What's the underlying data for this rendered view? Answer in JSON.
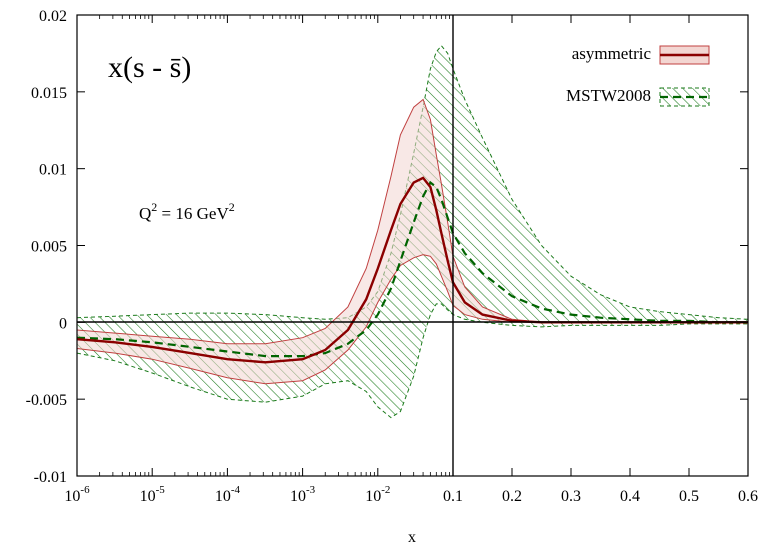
{
  "chart_data": {
    "type": "area",
    "title": "x(s - s̄)",
    "annotation": {
      "base": "Q",
      "exp1": "2",
      "mid": " = 16 GeV",
      "exp2": "2"
    },
    "xlabel": "x",
    "ylabel": "",
    "x_axis": {
      "log_segment": {
        "range": [
          1e-06,
          0.1
        ],
        "scale": "log"
      },
      "linear_segment": {
        "range": [
          0.1,
          0.6
        ],
        "scale": "linear"
      },
      "tick_labels": [
        {
          "base": "10",
          "exp": "-6",
          "x": 1e-06
        },
        {
          "base": "10",
          "exp": "-5",
          "x": 1e-05
        },
        {
          "base": "10",
          "exp": "-4",
          "x": 0.0001
        },
        {
          "base": "10",
          "exp": "-3",
          "x": 0.001
        },
        {
          "base": "10",
          "exp": "-2",
          "x": 0.01
        },
        {
          "text": "0.1",
          "x": 0.1
        },
        {
          "text": "0.2",
          "x": 0.2
        },
        {
          "text": "0.3",
          "x": 0.3
        },
        {
          "text": "0.4",
          "x": 0.4
        },
        {
          "text": "0.5",
          "x": 0.5
        },
        {
          "text": "0.6",
          "x": 0.6
        }
      ]
    },
    "ylim": [
      -0.01,
      0.02
    ],
    "y_ticks": [
      {
        "text": "-0.01",
        "value": -0.01
      },
      {
        "text": "-0.005",
        "value": -0.005
      },
      {
        "text": "0",
        "value": 0
      },
      {
        "text": "0.005",
        "value": 0.005
      },
      {
        "text": "0.01",
        "value": 0.01
      },
      {
        "text": "0.015",
        "value": 0.015
      },
      {
        "text": "0.02",
        "value": 0.02
      }
    ],
    "grid": false,
    "legend_position": "top-right",
    "series": [
      {
        "name": "asymmetric",
        "style": "solid band with central line",
        "line_color": "#8b0000",
        "band_fill": "#f3d6d2",
        "band_edge": "#c04040",
        "x": [
          1e-06,
          3.2e-06,
          1e-05,
          3.2e-05,
          0.0001,
          0.00032,
          0.001,
          0.002,
          0.004,
          0.007,
          0.01,
          0.015,
          0.02,
          0.03,
          0.04,
          0.05,
          0.06,
          0.07,
          0.085,
          0.1,
          0.12,
          0.15,
          0.2,
          0.25,
          0.3,
          0.4,
          0.5,
          0.6
        ],
        "central": [
          -0.0011,
          -0.0013,
          -0.0016,
          -0.002,
          -0.0024,
          -0.0026,
          -0.0024,
          -0.0018,
          -0.0005,
          0.0015,
          0.0035,
          0.006,
          0.0077,
          0.0091,
          0.0094,
          0.0088,
          0.0073,
          0.0058,
          0.004,
          0.0026,
          0.0013,
          0.0005,
          0.0001,
          0.0,
          0.0,
          0.0,
          0.0,
          0.0
        ],
        "upper": [
          -0.0005,
          -0.0007,
          -0.0009,
          -0.0011,
          -0.0014,
          -0.0014,
          -0.001,
          -0.0004,
          0.001,
          0.0035,
          0.006,
          0.0095,
          0.0122,
          0.014,
          0.0145,
          0.0132,
          0.0109,
          0.009,
          0.0065,
          0.0043,
          0.0023,
          0.001,
          0.0002,
          0.0,
          0.0,
          0.0,
          0.0,
          0.0
        ],
        "lower": [
          -0.0017,
          -0.002,
          -0.0024,
          -0.003,
          -0.0036,
          -0.004,
          -0.0038,
          -0.0031,
          -0.0018,
          -0.0003,
          0.0013,
          0.0028,
          0.0037,
          0.0042,
          0.0044,
          0.0043,
          0.0038,
          0.003,
          0.002,
          0.0011,
          0.0005,
          0.0002,
          0.0,
          0.0,
          0.0,
          0.0,
          0.0,
          0.0
        ]
      },
      {
        "name": "MSTW2008",
        "style": "hatched band with dashed central line",
        "line_color": "#006400",
        "hatch_color": "#1a7a1a",
        "x": [
          1e-06,
          3.2e-06,
          1e-05,
          3.2e-05,
          0.0001,
          0.00032,
          0.001,
          0.002,
          0.004,
          0.007,
          0.01,
          0.015,
          0.02,
          0.03,
          0.04,
          0.05,
          0.06,
          0.07,
          0.085,
          0.1,
          0.12,
          0.15,
          0.2,
          0.25,
          0.3,
          0.35,
          0.4,
          0.45,
          0.5,
          0.55,
          0.6
        ],
        "central": [
          -0.001,
          -0.0011,
          -0.0013,
          -0.0016,
          -0.0019,
          -0.0022,
          -0.0022,
          -0.002,
          -0.0014,
          -0.0005,
          0.0005,
          0.0022,
          0.004,
          0.0065,
          0.0082,
          0.0091,
          0.0088,
          0.008,
          0.0068,
          0.0058,
          0.0045,
          0.0032,
          0.0017,
          0.0009,
          0.0005,
          0.0003,
          0.0002,
          0.0001,
          0.0001,
          0.0,
          0.0
        ],
        "upper": [
          0.0003,
          0.0004,
          0.0005,
          0.0006,
          0.0006,
          0.0005,
          0.0003,
          0.0002,
          0.0003,
          0.001,
          0.002,
          0.0045,
          0.007,
          0.011,
          0.014,
          0.0165,
          0.0176,
          0.018,
          0.0175,
          0.0165,
          0.0145,
          0.012,
          0.008,
          0.005,
          0.003,
          0.0018,
          0.001,
          0.0007,
          0.0005,
          0.0003,
          0.0002
        ],
        "lower": [
          -0.002,
          -0.0025,
          -0.0033,
          -0.0042,
          -0.005,
          -0.0052,
          -0.0048,
          -0.004,
          -0.0038,
          -0.0045,
          -0.0055,
          -0.0062,
          -0.0058,
          -0.0035,
          -0.001,
          0.0005,
          0.0012,
          0.0012,
          0.0008,
          0.0005,
          0.0002,
          0.0,
          -0.0002,
          -0.0003,
          -0.0002,
          -0.0002,
          -0.0002,
          -0.0002,
          -0.0001,
          -0.0001,
          -0.0001
        ]
      }
    ]
  }
}
